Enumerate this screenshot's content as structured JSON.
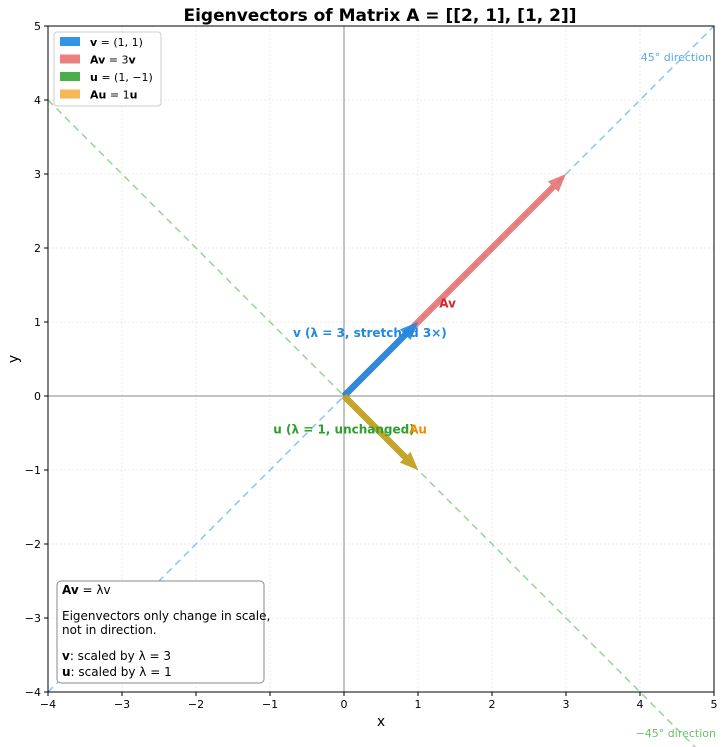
{
  "chart_data": {
    "type": "vector",
    "title": "Eigenvectors of Matrix A = [[2, 1], [1, 2]]",
    "xlabel": "x",
    "ylabel": "y",
    "xlim": [
      -4,
      5
    ],
    "ylim": [
      -4,
      5
    ],
    "xticks": [
      -4,
      -3,
      -2,
      -1,
      0,
      1,
      2,
      3,
      4,
      5
    ],
    "yticks": [
      -4,
      -3,
      -2,
      -1,
      0,
      1,
      2,
      3,
      4,
      5
    ],
    "grid": true,
    "legend_position": "upper-left",
    "reference_lines": [
      {
        "label": "45° direction",
        "slope": 1,
        "color": "#90c8ef"
      },
      {
        "label": "−45° direction",
        "slope": -1,
        "color": "#9fd49f"
      }
    ],
    "vectors": [
      {
        "id": "Av",
        "from": [
          0,
          0
        ],
        "to": [
          3,
          3
        ],
        "color": "#e66a6a",
        "opacity": 0.85,
        "legend_bold": "Av",
        "legend_rest": " = 3",
        "legend_tail": "v",
        "annotation": "Av",
        "annotation_pos": [
          1.4,
          1.25
        ],
        "annotation_color": "#d62728"
      },
      {
        "id": "v",
        "from": [
          0,
          0
        ],
        "to": [
          1,
          1
        ],
        "color": "#1e88e5",
        "opacity": 0.9,
        "legend_bold": "v",
        "legend_rest": " = (1, 1)",
        "legend_tail": "",
        "annotation": "v (λ = 3, stretched 3×)",
        "annotation_pos": [
          0.35,
          0.85
        ],
        "annotation_color": "#1e88e5"
      },
      {
        "id": "u",
        "from": [
          0,
          0
        ],
        "to": [
          1,
          -1
        ],
        "color": "#2ca02c",
        "opacity": 0.85,
        "legend_bold": "u",
        "legend_rest": " = (1, −1)",
        "legend_tail": "",
        "annotation": "u (λ = 1, unchanged)",
        "annotation_pos": [
          0.0,
          -0.45
        ],
        "annotation_color": "#2ca02c"
      },
      {
        "id": "Au",
        "from": [
          0,
          0
        ],
        "to": [
          1,
          -1
        ],
        "color": "#f0a020",
        "opacity": 0.75,
        "legend_bold": "Au",
        "legend_rest": " = 1",
        "legend_tail": "u",
        "annotation": "Au",
        "annotation_pos": [
          1.0,
          -0.45
        ],
        "annotation_color": "#f08c00"
      }
    ],
    "info_box": {
      "line1_bold": "Av",
      "line1_rest": " = λv",
      "line2": "Eigenvectors only change in scale,",
      "line3": "not in direction.",
      "line4_bold": "v",
      "line4_rest": ": scaled by λ = 3",
      "line5_bold": "u",
      "line5_rest": ": scaled by λ = 1"
    }
  }
}
